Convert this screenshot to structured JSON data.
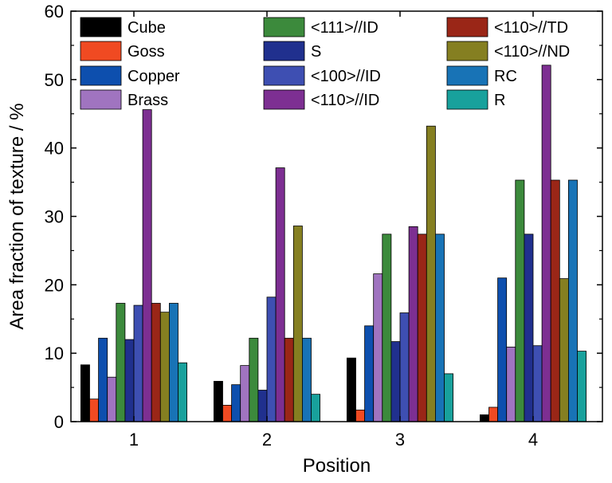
{
  "chart_data": {
    "type": "bar",
    "xlabel": "Position",
    "ylabel": "Area fraction of texture / %",
    "ylim": [
      0,
      60
    ],
    "yticks": [
      0,
      10,
      20,
      30,
      40,
      50,
      60
    ],
    "categories": [
      "1",
      "2",
      "3",
      "4"
    ],
    "legend_columns": 3,
    "legend_placement": "top",
    "series": [
      {
        "name": "Cube",
        "color": "#000000",
        "values": [
          8.3,
          5.9,
          9.3,
          1.0
        ]
      },
      {
        "name": "Goss",
        "color": "#f04a22",
        "values": [
          3.3,
          2.4,
          1.7,
          2.1
        ]
      },
      {
        "name": "Copper",
        "color": "#0d4fae",
        "values": [
          12.2,
          5.4,
          14.0,
          21.0
        ]
      },
      {
        "name": "Brass",
        "color": "#a074c0",
        "values": [
          6.5,
          8.2,
          21.6,
          10.9
        ]
      },
      {
        "name": "<111>//ID",
        "color": "#3c8a3c",
        "values": [
          17.3,
          12.2,
          27.4,
          35.3
        ]
      },
      {
        "name": "S",
        "color": "#20308e",
        "values": [
          12.0,
          4.6,
          11.7,
          27.4
        ]
      },
      {
        "name": "<100>//ID",
        "color": "#3e4fb2",
        "values": [
          17.0,
          18.2,
          15.9,
          11.1
        ]
      },
      {
        "name": "<110>//ID",
        "color": "#7d2f92",
        "values": [
          45.6,
          37.1,
          28.5,
          52.1
        ]
      },
      {
        "name": "<110>//TD",
        "color": "#9a2617",
        "values": [
          17.3,
          12.2,
          27.4,
          35.3
        ]
      },
      {
        "name": "<110>//ND",
        "color": "#857f21",
        "values": [
          16.0,
          28.6,
          43.2,
          20.9
        ]
      },
      {
        "name": "RC",
        "color": "#1873b6",
        "values": [
          17.3,
          12.2,
          27.4,
          35.3
        ]
      },
      {
        "name": "R",
        "color": "#18a19c",
        "values": [
          8.6,
          4.0,
          7.0,
          10.3
        ]
      }
    ]
  }
}
